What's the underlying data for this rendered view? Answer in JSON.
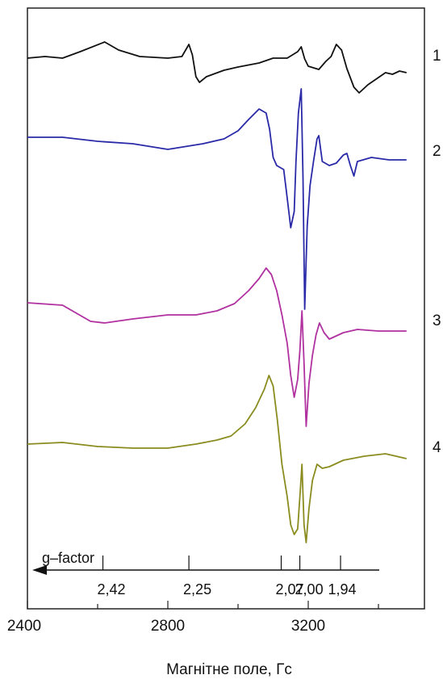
{
  "chart_data": {
    "type": "line",
    "xlabel": "Магнітне поле, Гс",
    "ylabel": "",
    "xlim": [
      2400,
      3620
    ],
    "x_ticks": [
      2400,
      2800,
      3200
    ],
    "x_tick_labels": [
      "2400",
      "2800",
      "3200"
    ],
    "grid": false,
    "g_factor": {
      "label": "g–factor",
      "ticks": [
        {
          "label": "2,42",
          "field": 2615
        },
        {
          "label": "2,25",
          "field": 2860
        },
        {
          "label": "2,07",
          "field": 3123
        },
        {
          "label": "2,00",
          "field": 3176
        },
        {
          "label": "1,94",
          "field": 3292
        }
      ]
    },
    "series": [
      {
        "name": "1",
        "color": "#111111",
        "offset": 0,
        "points": [
          [
            2400,
            72
          ],
          [
            2450,
            70
          ],
          [
            2500,
            72
          ],
          [
            2550,
            64
          ],
          [
            2620,
            52
          ],
          [
            2660,
            62
          ],
          [
            2720,
            70
          ],
          [
            2800,
            72
          ],
          [
            2840,
            70
          ],
          [
            2860,
            55
          ],
          [
            2870,
            68
          ],
          [
            2880,
            95
          ],
          [
            2890,
            102
          ],
          [
            2910,
            95
          ],
          [
            2960,
            87
          ],
          [
            3000,
            83
          ],
          [
            3060,
            78
          ],
          [
            3100,
            72
          ],
          [
            3140,
            72
          ],
          [
            3170,
            64
          ],
          [
            3180,
            58
          ],
          [
            3190,
            73
          ],
          [
            3200,
            82
          ],
          [
            3230,
            86
          ],
          [
            3250,
            76
          ],
          [
            3265,
            70
          ],
          [
            3280,
            55
          ],
          [
            3295,
            62
          ],
          [
            3310,
            85
          ],
          [
            3330,
            108
          ],
          [
            3345,
            115
          ],
          [
            3370,
            105
          ],
          [
            3400,
            96
          ],
          [
            3420,
            90
          ],
          [
            3440,
            92
          ],
          [
            3460,
            88
          ],
          [
            3480,
            90
          ]
        ]
      },
      {
        "name": "2",
        "color": "#2a2aa8",
        "offset": 0,
        "points": [
          [
            2400,
            170
          ],
          [
            2500,
            170
          ],
          [
            2600,
            175
          ],
          [
            2700,
            178
          ],
          [
            2800,
            185
          ],
          [
            2900,
            178
          ],
          [
            2960,
            172
          ],
          [
            3000,
            162
          ],
          [
            3030,
            148
          ],
          [
            3060,
            135
          ],
          [
            3080,
            140
          ],
          [
            3090,
            160
          ],
          [
            3100,
            195
          ],
          [
            3110,
            205
          ],
          [
            3130,
            210
          ],
          [
            3140,
            245
          ],
          [
            3150,
            282
          ],
          [
            3160,
            262
          ],
          [
            3165,
            200
          ],
          [
            3172,
            140
          ],
          [
            3180,
            110
          ],
          [
            3185,
            220
          ],
          [
            3190,
            383
          ],
          [
            3197,
            280
          ],
          [
            3205,
            230
          ],
          [
            3215,
            200
          ],
          [
            3225,
            172
          ],
          [
            3230,
            168
          ],
          [
            3240,
            200
          ],
          [
            3260,
            205
          ],
          [
            3280,
            202
          ],
          [
            3300,
            192
          ],
          [
            3310,
            190
          ],
          [
            3320,
            205
          ],
          [
            3330,
            218
          ],
          [
            3340,
            200
          ],
          [
            3380,
            195
          ],
          [
            3430,
            198
          ],
          [
            3480,
            198
          ]
        ]
      },
      {
        "name": "3",
        "color": "#b0319f",
        "offset": 0,
        "points": [
          [
            2400,
            375
          ],
          [
            2500,
            378
          ],
          [
            2580,
            398
          ],
          [
            2620,
            400
          ],
          [
            2700,
            395
          ],
          [
            2800,
            390
          ],
          [
            2880,
            390
          ],
          [
            2940,
            385
          ],
          [
            2990,
            376
          ],
          [
            3030,
            360
          ],
          [
            3060,
            345
          ],
          [
            3080,
            332
          ],
          [
            3095,
            340
          ],
          [
            3110,
            360
          ],
          [
            3125,
            390
          ],
          [
            3140,
            425
          ],
          [
            3150,
            465
          ],
          [
            3160,
            492
          ],
          [
            3170,
            470
          ],
          [
            3176,
            435
          ],
          [
            3182,
            385
          ],
          [
            3188,
            450
          ],
          [
            3194,
            528
          ],
          [
            3202,
            475
          ],
          [
            3212,
            440
          ],
          [
            3222,
            415
          ],
          [
            3232,
            400
          ],
          [
            3245,
            412
          ],
          [
            3260,
            420
          ],
          [
            3300,
            412
          ],
          [
            3340,
            408
          ],
          [
            3400,
            410
          ],
          [
            3450,
            410
          ],
          [
            3480,
            410
          ]
        ]
      },
      {
        "name": "4",
        "color": "#8a8c1f",
        "offset": 0,
        "points": [
          [
            2400,
            550
          ],
          [
            2500,
            548
          ],
          [
            2600,
            553
          ],
          [
            2700,
            555
          ],
          [
            2800,
            555
          ],
          [
            2880,
            550
          ],
          [
            2940,
            545
          ],
          [
            2980,
            540
          ],
          [
            3020,
            525
          ],
          [
            3050,
            505
          ],
          [
            3075,
            482
          ],
          [
            3088,
            465
          ],
          [
            3100,
            478
          ],
          [
            3112,
            520
          ],
          [
            3125,
            575
          ],
          [
            3140,
            615
          ],
          [
            3150,
            650
          ],
          [
            3160,
            662
          ],
          [
            3170,
            655
          ],
          [
            3177,
            610
          ],
          [
            3182,
            575
          ],
          [
            3188,
            650
          ],
          [
            3194,
            672
          ],
          [
            3202,
            630
          ],
          [
            3212,
            595
          ],
          [
            3225,
            575
          ],
          [
            3240,
            580
          ],
          [
            3260,
            578
          ],
          [
            3300,
            570
          ],
          [
            3360,
            565
          ],
          [
            3420,
            562
          ],
          [
            3480,
            568
          ]
        ]
      }
    ]
  }
}
